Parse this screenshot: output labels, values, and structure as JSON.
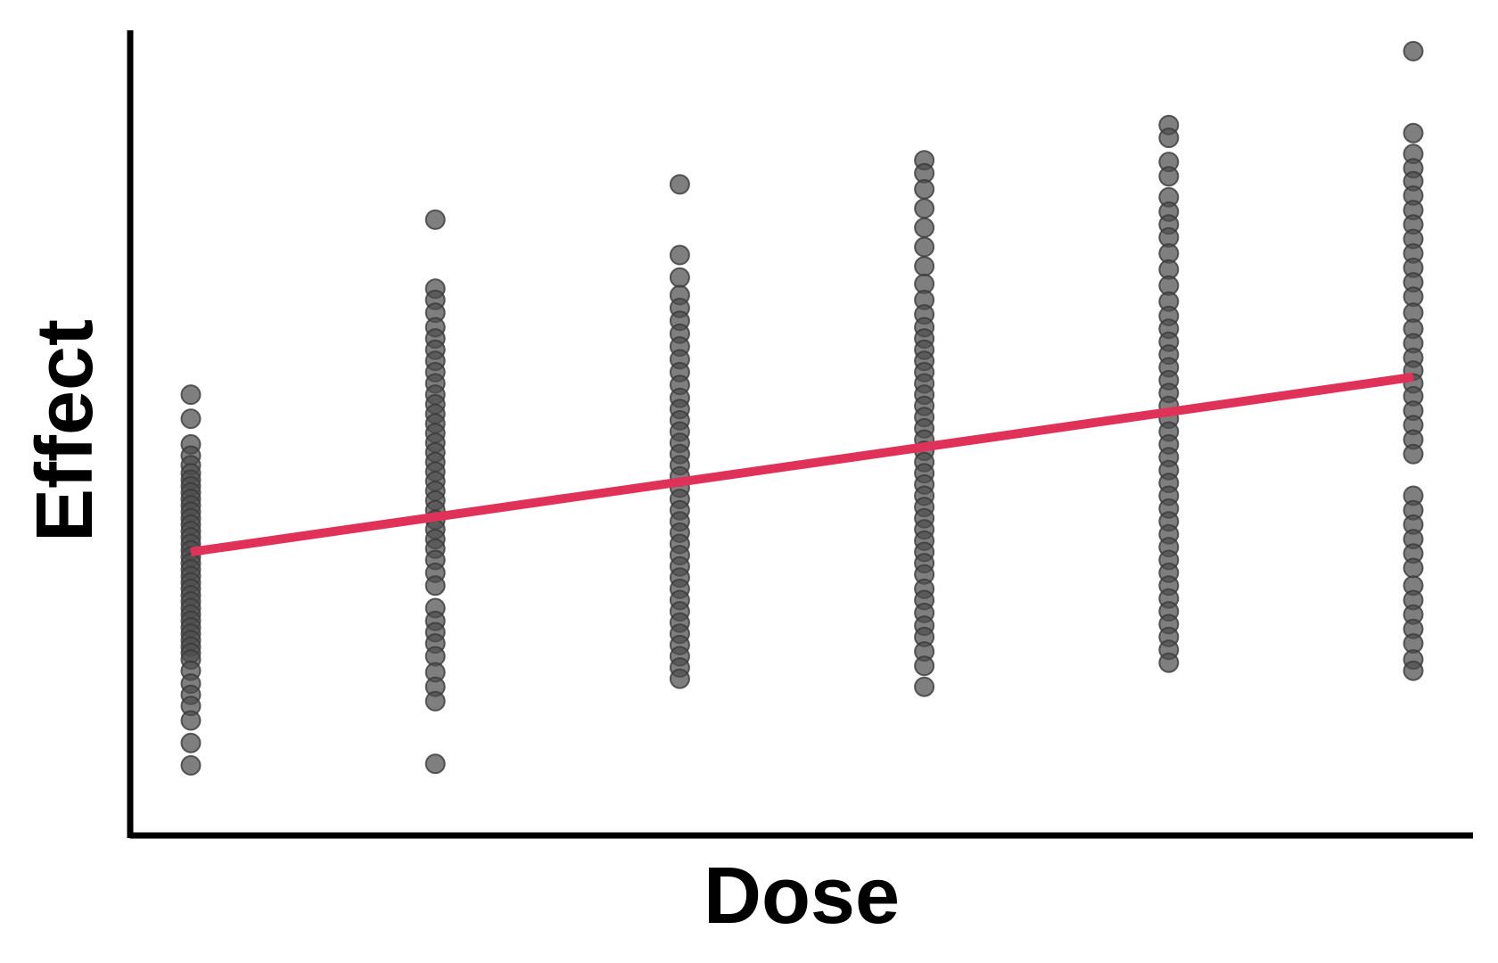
{
  "chart_data": {
    "type": "scatter",
    "title": "",
    "xlabel": "Dose",
    "ylabel": "Effect",
    "x_ticks_shown": false,
    "y_ticks_shown": false,
    "grid": false,
    "xlim": [
      0.5,
      6.0
    ],
    "ylim": [
      0.0,
      10.0
    ],
    "colors": {
      "points": "#4d4d4d",
      "point_outline": "#3a3a3a",
      "trend_line": "#e03258",
      "axes": "#000000"
    },
    "series": [
      {
        "kind": "points",
        "points": [
          {
            "x": 1,
            "y": 5.46
          },
          {
            "x": 1,
            "y": 5.16
          },
          {
            "x": 1,
            "y": 4.84
          },
          {
            "x": 1,
            "y": 4.7
          },
          {
            "x": 1,
            "y": 4.58
          },
          {
            "x": 1,
            "y": 4.48
          },
          {
            "x": 1,
            "y": 4.4
          },
          {
            "x": 1,
            "y": 4.32
          },
          {
            "x": 1,
            "y": 4.24
          },
          {
            "x": 1,
            "y": 4.16
          },
          {
            "x": 1,
            "y": 4.08
          },
          {
            "x": 1,
            "y": 4.0
          },
          {
            "x": 1,
            "y": 3.92
          },
          {
            "x": 1,
            "y": 3.84
          },
          {
            "x": 1,
            "y": 3.76
          },
          {
            "x": 1,
            "y": 3.68
          },
          {
            "x": 1,
            "y": 3.6
          },
          {
            "x": 1,
            "y": 3.52
          },
          {
            "x": 1,
            "y": 3.44
          },
          {
            "x": 1,
            "y": 3.36
          },
          {
            "x": 1,
            "y": 3.28
          },
          {
            "x": 1,
            "y": 3.2
          },
          {
            "x": 1,
            "y": 3.12
          },
          {
            "x": 1,
            "y": 3.04
          },
          {
            "x": 1,
            "y": 2.96
          },
          {
            "x": 1,
            "y": 2.88
          },
          {
            "x": 1,
            "y": 2.8
          },
          {
            "x": 1,
            "y": 2.72
          },
          {
            "x": 1,
            "y": 2.64
          },
          {
            "x": 1,
            "y": 2.56
          },
          {
            "x": 1,
            "y": 2.48
          },
          {
            "x": 1,
            "y": 2.4
          },
          {
            "x": 1,
            "y": 2.32
          },
          {
            "x": 1,
            "y": 2.24
          },
          {
            "x": 1,
            "y": 2.16
          },
          {
            "x": 1,
            "y": 2.02
          },
          {
            "x": 1,
            "y": 1.86
          },
          {
            "x": 1,
            "y": 1.72
          },
          {
            "x": 1,
            "y": 1.58
          },
          {
            "x": 1,
            "y": 1.4
          },
          {
            "x": 1,
            "y": 1.12
          },
          {
            "x": 1,
            "y": 0.84
          },
          {
            "x": 2,
            "y": 7.64
          },
          {
            "x": 2,
            "y": 6.78
          },
          {
            "x": 2,
            "y": 6.64
          },
          {
            "x": 2,
            "y": 6.48
          },
          {
            "x": 2,
            "y": 6.3
          },
          {
            "x": 2,
            "y": 6.16
          },
          {
            "x": 2,
            "y": 6.02
          },
          {
            "x": 2,
            "y": 5.88
          },
          {
            "x": 2,
            "y": 5.74
          },
          {
            "x": 2,
            "y": 5.6
          },
          {
            "x": 2,
            "y": 5.46
          },
          {
            "x": 2,
            "y": 5.34
          },
          {
            "x": 2,
            "y": 5.22
          },
          {
            "x": 2,
            "y": 5.1
          },
          {
            "x": 2,
            "y": 4.98
          },
          {
            "x": 2,
            "y": 4.86
          },
          {
            "x": 2,
            "y": 4.74
          },
          {
            "x": 2,
            "y": 4.62
          },
          {
            "x": 2,
            "y": 4.5
          },
          {
            "x": 2,
            "y": 4.38
          },
          {
            "x": 2,
            "y": 4.26
          },
          {
            "x": 2,
            "y": 4.14
          },
          {
            "x": 2,
            "y": 4.02
          },
          {
            "x": 2,
            "y": 3.9
          },
          {
            "x": 2,
            "y": 3.78
          },
          {
            "x": 2,
            "y": 3.66
          },
          {
            "x": 2,
            "y": 3.54
          },
          {
            "x": 2,
            "y": 3.4
          },
          {
            "x": 2,
            "y": 3.24
          },
          {
            "x": 2,
            "y": 3.08
          },
          {
            "x": 2,
            "y": 2.8
          },
          {
            "x": 2,
            "y": 2.64
          },
          {
            "x": 2,
            "y": 2.5
          },
          {
            "x": 2,
            "y": 2.36
          },
          {
            "x": 2,
            "y": 2.2
          },
          {
            "x": 2,
            "y": 2.0
          },
          {
            "x": 2,
            "y": 1.82
          },
          {
            "x": 2,
            "y": 1.64
          },
          {
            "x": 2,
            "y": 0.86
          },
          {
            "x": 3,
            "y": 8.08
          },
          {
            "x": 3,
            "y": 7.2
          },
          {
            "x": 3,
            "y": 6.92
          },
          {
            "x": 3,
            "y": 6.7
          },
          {
            "x": 3,
            "y": 6.54
          },
          {
            "x": 3,
            "y": 6.38
          },
          {
            "x": 3,
            "y": 6.22
          },
          {
            "x": 3,
            "y": 6.06
          },
          {
            "x": 3,
            "y": 5.9
          },
          {
            "x": 3,
            "y": 5.74
          },
          {
            "x": 3,
            "y": 5.58
          },
          {
            "x": 3,
            "y": 5.42
          },
          {
            "x": 3,
            "y": 5.28
          },
          {
            "x": 3,
            "y": 5.14
          },
          {
            "x": 3,
            "y": 5.0
          },
          {
            "x": 3,
            "y": 4.86
          },
          {
            "x": 3,
            "y": 4.72
          },
          {
            "x": 3,
            "y": 4.58
          },
          {
            "x": 3,
            "y": 4.44
          },
          {
            "x": 3,
            "y": 4.3
          },
          {
            "x": 3,
            "y": 4.16
          },
          {
            "x": 3,
            "y": 4.02
          },
          {
            "x": 3,
            "y": 3.88
          },
          {
            "x": 3,
            "y": 3.74
          },
          {
            "x": 3,
            "y": 3.6
          },
          {
            "x": 3,
            "y": 3.46
          },
          {
            "x": 3,
            "y": 3.32
          },
          {
            "x": 3,
            "y": 3.18
          },
          {
            "x": 3,
            "y": 3.04
          },
          {
            "x": 3,
            "y": 2.9
          },
          {
            "x": 3,
            "y": 2.76
          },
          {
            "x": 3,
            "y": 2.62
          },
          {
            "x": 3,
            "y": 2.48
          },
          {
            "x": 3,
            "y": 2.34
          },
          {
            "x": 3,
            "y": 2.2
          },
          {
            "x": 3,
            "y": 2.06
          },
          {
            "x": 3,
            "y": 1.92
          },
          {
            "x": 4,
            "y": 8.38
          },
          {
            "x": 4,
            "y": 8.22
          },
          {
            "x": 4,
            "y": 8.02
          },
          {
            "x": 4,
            "y": 7.78
          },
          {
            "x": 4,
            "y": 7.54
          },
          {
            "x": 4,
            "y": 7.3
          },
          {
            "x": 4,
            "y": 7.06
          },
          {
            "x": 4,
            "y": 6.84
          },
          {
            "x": 4,
            "y": 6.64
          },
          {
            "x": 4,
            "y": 6.46
          },
          {
            "x": 4,
            "y": 6.3
          },
          {
            "x": 4,
            "y": 6.16
          },
          {
            "x": 4,
            "y": 6.02
          },
          {
            "x": 4,
            "y": 5.88
          },
          {
            "x": 4,
            "y": 5.74
          },
          {
            "x": 4,
            "y": 5.6
          },
          {
            "x": 4,
            "y": 5.46
          },
          {
            "x": 4,
            "y": 5.32
          },
          {
            "x": 4,
            "y": 5.18
          },
          {
            "x": 4,
            "y": 5.04
          },
          {
            "x": 4,
            "y": 4.9
          },
          {
            "x": 4,
            "y": 4.76
          },
          {
            "x": 4,
            "y": 4.62
          },
          {
            "x": 4,
            "y": 4.48
          },
          {
            "x": 4,
            "y": 4.34
          },
          {
            "x": 4,
            "y": 4.2
          },
          {
            "x": 4,
            "y": 4.06
          },
          {
            "x": 4,
            "y": 3.92
          },
          {
            "x": 4,
            "y": 3.78
          },
          {
            "x": 4,
            "y": 3.64
          },
          {
            "x": 4,
            "y": 3.5
          },
          {
            "x": 4,
            "y": 3.36
          },
          {
            "x": 4,
            "y": 3.22
          },
          {
            "x": 4,
            "y": 3.04
          },
          {
            "x": 4,
            "y": 2.9
          },
          {
            "x": 4,
            "y": 2.74
          },
          {
            "x": 4,
            "y": 2.58
          },
          {
            "x": 4,
            "y": 2.44
          },
          {
            "x": 4,
            "y": 2.26
          },
          {
            "x": 4,
            "y": 2.08
          },
          {
            "x": 4,
            "y": 1.82
          },
          {
            "x": 5,
            "y": 8.82
          },
          {
            "x": 5,
            "y": 8.66
          },
          {
            "x": 5,
            "y": 8.36
          },
          {
            "x": 5,
            "y": 8.18
          },
          {
            "x": 5,
            "y": 7.92
          },
          {
            "x": 5,
            "y": 7.74
          },
          {
            "x": 5,
            "y": 7.58
          },
          {
            "x": 5,
            "y": 7.42
          },
          {
            "x": 5,
            "y": 7.22
          },
          {
            "x": 5,
            "y": 7.02
          },
          {
            "x": 5,
            "y": 6.82
          },
          {
            "x": 5,
            "y": 6.62
          },
          {
            "x": 5,
            "y": 6.44
          },
          {
            "x": 5,
            "y": 6.28
          },
          {
            "x": 5,
            "y": 6.12
          },
          {
            "x": 5,
            "y": 5.96
          },
          {
            "x": 5,
            "y": 5.8
          },
          {
            "x": 5,
            "y": 5.64
          },
          {
            "x": 5,
            "y": 5.48
          },
          {
            "x": 5,
            "y": 5.32
          },
          {
            "x": 5,
            "y": 5.16
          },
          {
            "x": 5,
            "y": 5.0
          },
          {
            "x": 5,
            "y": 4.84
          },
          {
            "x": 5,
            "y": 4.68
          },
          {
            "x": 5,
            "y": 4.52
          },
          {
            "x": 5,
            "y": 4.36
          },
          {
            "x": 5,
            "y": 4.2
          },
          {
            "x": 5,
            "y": 4.04
          },
          {
            "x": 5,
            "y": 3.88
          },
          {
            "x": 5,
            "y": 3.72
          },
          {
            "x": 5,
            "y": 3.56
          },
          {
            "x": 5,
            "y": 3.4
          },
          {
            "x": 5,
            "y": 3.24
          },
          {
            "x": 5,
            "y": 3.08
          },
          {
            "x": 5,
            "y": 2.92
          },
          {
            "x": 5,
            "y": 2.76
          },
          {
            "x": 5,
            "y": 2.6
          },
          {
            "x": 5,
            "y": 2.44
          },
          {
            "x": 5,
            "y": 2.28
          },
          {
            "x": 5,
            "y": 2.12
          },
          {
            "x": 6,
            "y": 9.74
          },
          {
            "x": 6,
            "y": 8.72
          },
          {
            "x": 6,
            "y": 8.46
          },
          {
            "x": 6,
            "y": 8.28
          },
          {
            "x": 6,
            "y": 8.12
          },
          {
            "x": 6,
            "y": 7.94
          },
          {
            "x": 6,
            "y": 7.76
          },
          {
            "x": 6,
            "y": 7.58
          },
          {
            "x": 6,
            "y": 7.4
          },
          {
            "x": 6,
            "y": 7.22
          },
          {
            "x": 6,
            "y": 7.04
          },
          {
            "x": 6,
            "y": 6.86
          },
          {
            "x": 6,
            "y": 6.68
          },
          {
            "x": 6,
            "y": 6.48
          },
          {
            "x": 6,
            "y": 6.28
          },
          {
            "x": 6,
            "y": 6.1
          },
          {
            "x": 6,
            "y": 5.92
          },
          {
            "x": 6,
            "y": 5.76
          },
          {
            "x": 6,
            "y": 5.6
          },
          {
            "x": 6,
            "y": 5.44
          },
          {
            "x": 6,
            "y": 5.26
          },
          {
            "x": 6,
            "y": 5.08
          },
          {
            "x": 6,
            "y": 4.9
          },
          {
            "x": 6,
            "y": 4.72
          },
          {
            "x": 6,
            "y": 4.2
          },
          {
            "x": 6,
            "y": 4.02
          },
          {
            "x": 6,
            "y": 3.84
          },
          {
            "x": 6,
            "y": 3.66
          },
          {
            "x": 6,
            "y": 3.48
          },
          {
            "x": 6,
            "y": 3.3
          },
          {
            "x": 6,
            "y": 3.08
          },
          {
            "x": 6,
            "y": 2.9
          },
          {
            "x": 6,
            "y": 2.72
          },
          {
            "x": 6,
            "y": 2.54
          },
          {
            "x": 6,
            "y": 2.36
          },
          {
            "x": 6,
            "y": 2.16
          },
          {
            "x": 6,
            "y": 2.02
          }
        ]
      },
      {
        "kind": "trend_line",
        "points": [
          {
            "x": 1,
            "y": 3.5
          },
          {
            "x": 6,
            "y": 5.68
          }
        ]
      }
    ]
  }
}
